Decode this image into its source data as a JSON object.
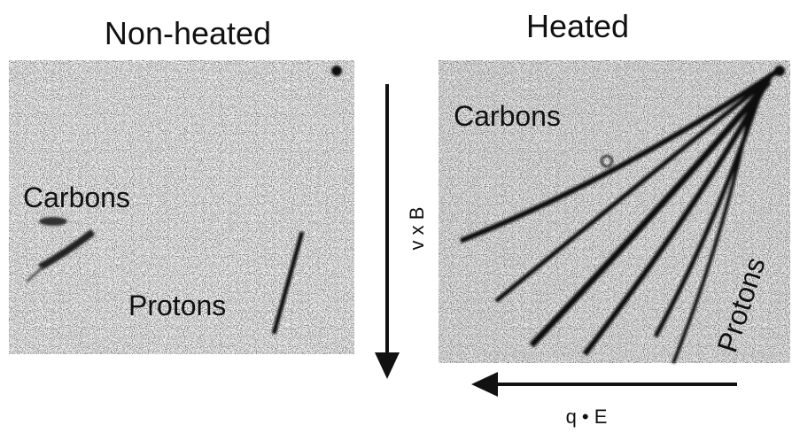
{
  "panels": [
    {
      "title": "Non-heated",
      "labels": [
        "Carbons",
        "Protons"
      ]
    },
    {
      "title": "Heated",
      "labels": [
        "Carbons",
        "Protons"
      ]
    }
  ],
  "axes": {
    "vertical": "v x B",
    "horizontal": "q • E"
  }
}
